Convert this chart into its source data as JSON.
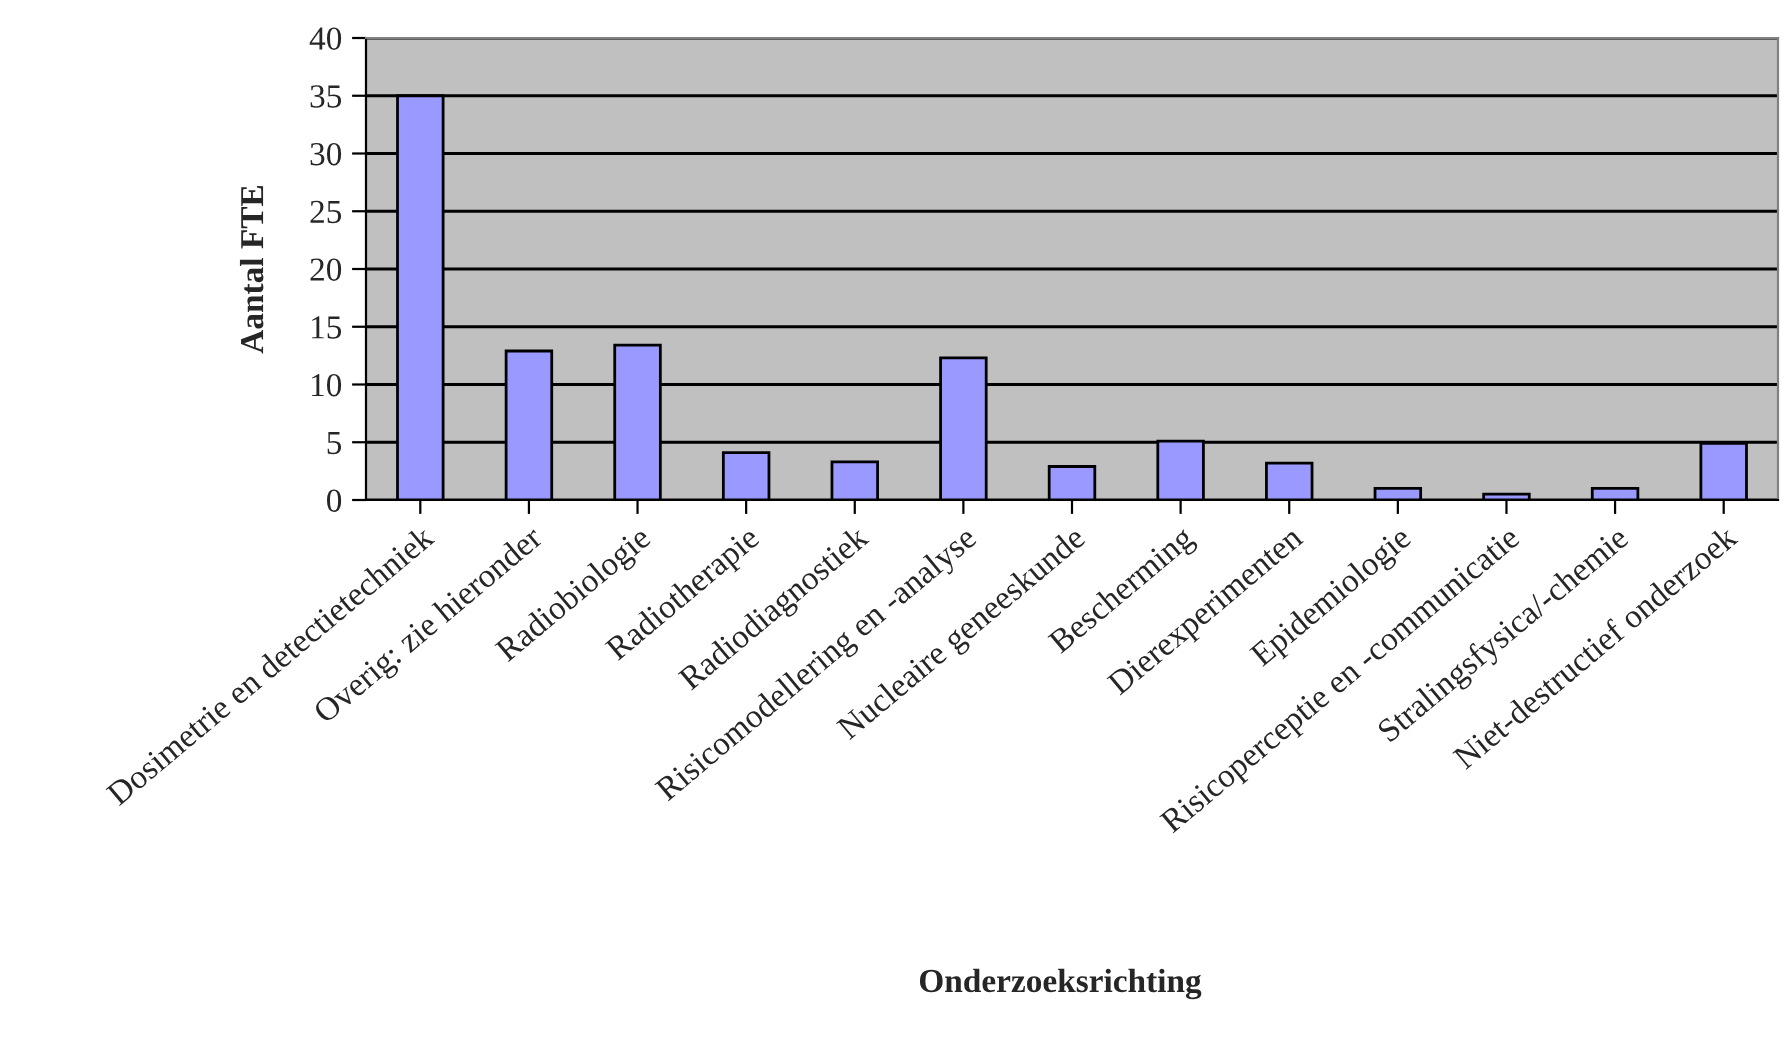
{
  "chart_data": {
    "type": "bar",
    "xlabel": "Onderzoeksrichting",
    "ylabel": "Aantal FTE",
    "categories": [
      "Dosimetrie en detectietechniek",
      "Overig: zie hieronder",
      "Radiobiologie",
      "Radiotherapie",
      "Radiodiagnostiek",
      "Risicomodellering en -analyse",
      "Nucleaire geneeskunde",
      "Bescherming",
      "Dierexperimenten",
      "Epidemiologie",
      "Risicoperceptie en -communicatie",
      "Stralingsfysica/-chemie",
      "Niet-destructief onderzoek"
    ],
    "values": [
      35,
      12.9,
      13.4,
      4.1,
      3.3,
      12.3,
      2.9,
      5.1,
      3.2,
      1.0,
      0.5,
      1.0,
      4.9
    ],
    "color": "#9999ff",
    "ylim": [
      0,
      40
    ],
    "yticks": [
      0,
      5,
      10,
      15,
      20,
      25,
      30,
      35,
      40
    ],
    "grid": "y"
  }
}
